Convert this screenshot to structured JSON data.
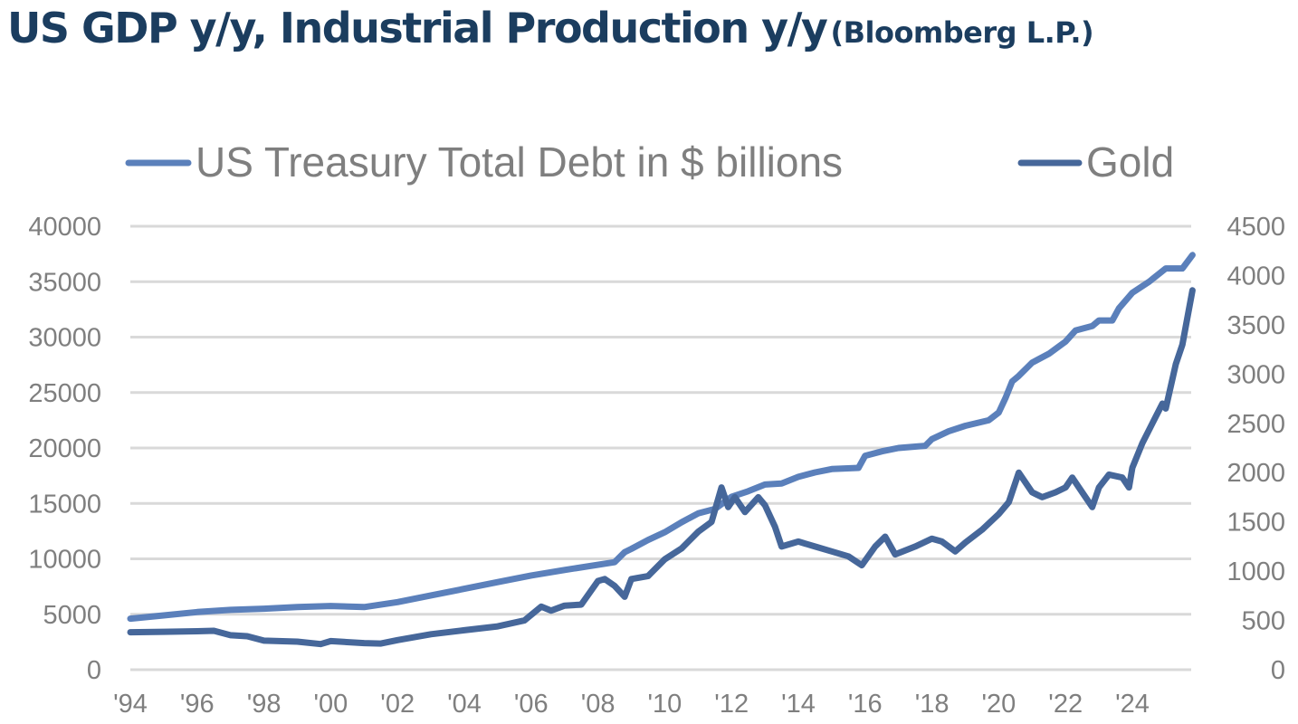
{
  "title": {
    "main": "US GDP y/y, Industrial Production y/y",
    "source": "(Bloomberg L.P.)"
  },
  "chart_data": {
    "type": "line",
    "title": "US GDP y/y, Industrial Production y/y (Bloomberg L.P.)",
    "legend_position": "top",
    "grid": true,
    "x_ticks": [
      "'94",
      "'96",
      "'98",
      "'00",
      "'02",
      "'04",
      "'06",
      "'08",
      "'10",
      "'12",
      "'14",
      "'16",
      "'18",
      "'20",
      "'22",
      "'24"
    ],
    "xlim": [
      1994,
      2025.8
    ],
    "y_left": {
      "ticks": [
        "0",
        "5000",
        "10000",
        "15000",
        "20000",
        "25000",
        "30000",
        "35000",
        "40000"
      ],
      "lim": [
        0,
        40000
      ]
    },
    "y_right": {
      "ticks": [
        "0",
        "500",
        "1000",
        "1500",
        "2000",
        "2500",
        "3000",
        "3500",
        "4000",
        "4500"
      ],
      "lim": [
        0,
        4500
      ]
    },
    "series": [
      {
        "name": "US Treasury Total Debt in $ billions",
        "axis": "left",
        "color": "#5B80BB",
        "x": [
          1994,
          1995,
          1996,
          1997,
          1998,
          1999,
          2000,
          2001,
          2002,
          2003,
          2004,
          2005,
          2006,
          2007,
          2008.5,
          2008.8,
          2009,
          2009.5,
          2010,
          2010.5,
          2011,
          2011.5,
          2012,
          2012.5,
          2013,
          2013.5,
          2014,
          2014.5,
          2015,
          2015.8,
          2016,
          2016.5,
          2017,
          2017.8,
          2018,
          2018.5,
          2019,
          2019.7,
          2020,
          2020.2,
          2020.4,
          2020.6,
          2021,
          2021.5,
          2022,
          2022.3,
          2022.8,
          2023,
          2023.4,
          2023.6,
          2024,
          2024.5,
          2025,
          2025.3,
          2025.5,
          2025.8
        ],
        "values": [
          4600,
          4900,
          5200,
          5400,
          5500,
          5650,
          5750,
          5650,
          6100,
          6700,
          7300,
          7900,
          8500,
          9000,
          9700,
          10600,
          10900,
          11700,
          12400,
          13300,
          14100,
          14500,
          15600,
          16100,
          16700,
          16800,
          17400,
          17800,
          18100,
          18200,
          19300,
          19700,
          20000,
          20200,
          20800,
          21500,
          22000,
          22500,
          23200,
          24500,
          26000,
          26500,
          27700,
          28500,
          29600,
          30600,
          31000,
          31500,
          31500,
          32600,
          34000,
          35000,
          36200,
          36200,
          36200,
          37400
        ]
      },
      {
        "name": "Gold",
        "axis": "right",
        "color": "#46679A",
        "x": [
          1994,
          1995,
          1996,
          1996.5,
          1997,
          1997.5,
          1998,
          1999,
          1999.7,
          2000,
          2001,
          2001.5,
          2002,
          2003,
          2004,
          2005,
          2005.8,
          2006.3,
          2006.6,
          2007,
          2007.5,
          2008,
          2008.2,
          2008.5,
          2008.8,
          2009,
          2009.5,
          2010,
          2010.5,
          2011,
          2011.4,
          2011.7,
          2011.9,
          2012.1,
          2012.4,
          2012.8,
          2013,
          2013.3,
          2013.5,
          2014,
          2014.5,
          2015,
          2015.5,
          2015.9,
          2016.3,
          2016.6,
          2016.9,
          2017.5,
          2018,
          2018.3,
          2018.7,
          2019,
          2019.5,
          2020,
          2020.3,
          2020.6,
          2021,
          2021.3,
          2021.7,
          2022,
          2022.2,
          2022.5,
          2022.8,
          2023,
          2023.3,
          2023.7,
          2023.9,
          2024,
          2024.3,
          2024.6,
          2024.9,
          2025,
          2025.3,
          2025.5,
          2025.8
        ],
        "values": [
          380,
          385,
          390,
          395,
          350,
          340,
          295,
          285,
          260,
          290,
          270,
          265,
          300,
          360,
          400,
          440,
          500,
          640,
          600,
          650,
          660,
          900,
          920,
          850,
          740,
          920,
          950,
          1120,
          1230,
          1400,
          1500,
          1850,
          1650,
          1750,
          1600,
          1750,
          1670,
          1450,
          1250,
          1300,
          1250,
          1200,
          1150,
          1060,
          1250,
          1350,
          1170,
          1250,
          1330,
          1300,
          1200,
          1290,
          1420,
          1580,
          1700,
          2000,
          1800,
          1750,
          1800,
          1850,
          1950,
          1800,
          1650,
          1850,
          1980,
          1950,
          1850,
          2050,
          2300,
          2500,
          2700,
          2650,
          3100,
          3300,
          3850
        ]
      }
    ]
  }
}
